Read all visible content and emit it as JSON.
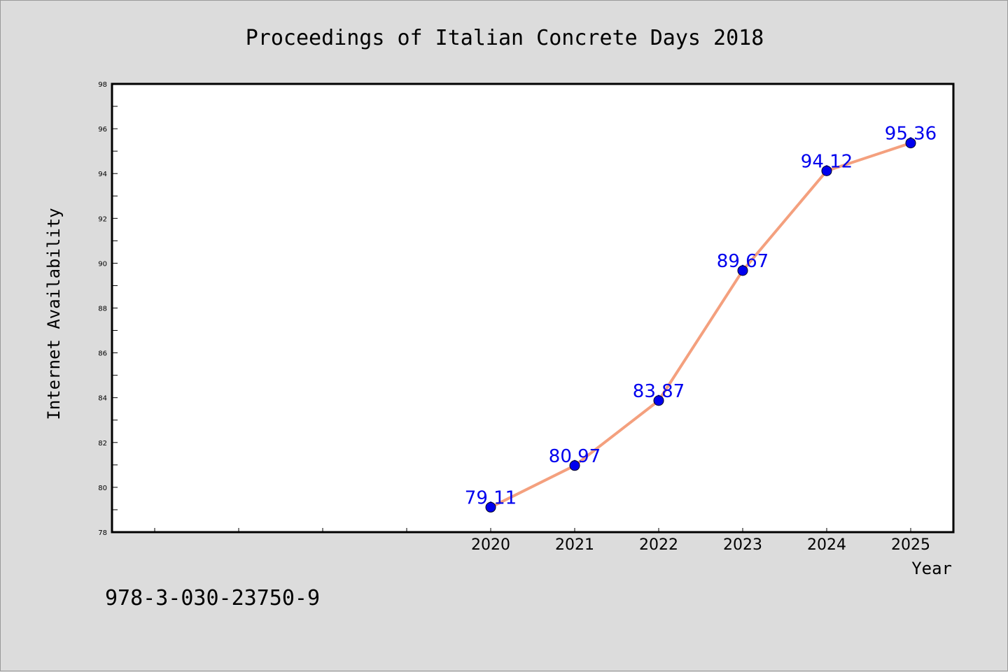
{
  "chart_data": {
    "type": "line",
    "title": "Proceedings of Italian Concrete Days 2018",
    "xlabel": "Year",
    "ylabel": "Internet Availability",
    "x": [
      "2020",
      "2021",
      "2022",
      "2023",
      "2024",
      "2025"
    ],
    "values": [
      79.11,
      80.97,
      83.87,
      89.67,
      94.12,
      95.36
    ],
    "data_labels": [
      "79.11",
      "80.97",
      "83.87",
      "89.67",
      "94.12",
      "95.36"
    ],
    "ylim": [
      78,
      98
    ],
    "yticks": [
      78,
      80,
      82,
      84,
      86,
      88,
      90,
      92,
      94,
      96,
      98
    ],
    "grid": false,
    "legend": "none",
    "line_color": "#f4a07e",
    "marker_color": "#0000ee",
    "label_color": "#0000ee"
  },
  "footer": {
    "isbn": "978-3-030-23750-9"
  }
}
